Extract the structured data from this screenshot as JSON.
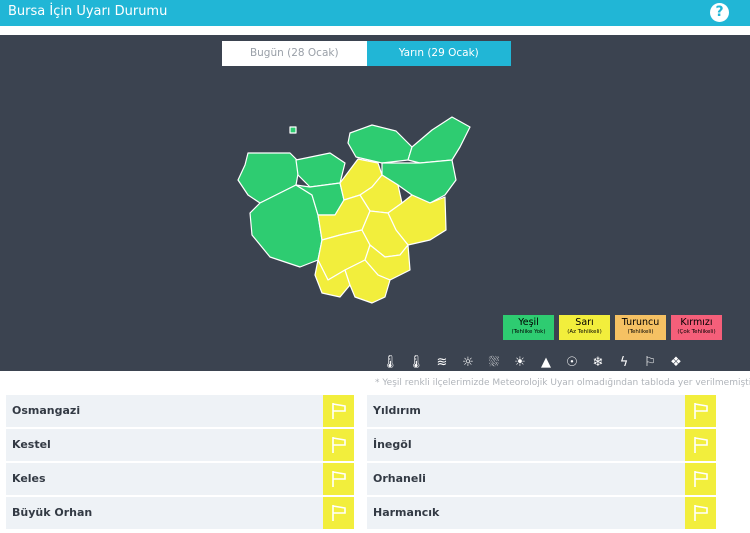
{
  "header": {
    "title": "Bursa İçin Uyarı Durumu",
    "help_icon": "question-icon",
    "help_glyph": "?"
  },
  "tabs": [
    {
      "label": "Bugün (28 Ocak)",
      "active": false
    },
    {
      "label": "Yarın (29 Ocak)",
      "active": true
    }
  ],
  "colors": {
    "green": "#2ecc71",
    "yellow": "#f2ee3c",
    "orange": "#f5c163",
    "red": "#f55f7a",
    "accent": "#21b6d6",
    "panel": "#3b4350"
  },
  "legend": [
    {
      "name": "Yeşil",
      "desc": "(Tehlike Yok)",
      "color": "#2ecc71"
    },
    {
      "name": "Sarı",
      "desc": "(Az Tehlikeli)",
      "color": "#f2ee3c"
    },
    {
      "name": "Turuncu",
      "desc": "(Tehlikeli)",
      "color": "#f5c163"
    },
    {
      "name": "Kırmızı",
      "desc": "(Çok Tehlikeli)",
      "color": "#f55f7a"
    }
  ],
  "hazard_icons": [
    {
      "name": "thermometer-low-icon",
      "glyph": "🌡"
    },
    {
      "name": "thermometer-high-icon",
      "glyph": "🌡"
    },
    {
      "name": "fog-icon",
      "glyph": "≋"
    },
    {
      "name": "dust-icon",
      "glyph": "☼"
    },
    {
      "name": "rain-icon",
      "glyph": "⛆"
    },
    {
      "name": "sun-cloud-icon",
      "glyph": "☀"
    },
    {
      "name": "avalanche-icon",
      "glyph": "▲"
    },
    {
      "name": "hot-icon",
      "glyph": "☉"
    },
    {
      "name": "snow-icon",
      "glyph": "❄"
    },
    {
      "name": "lightning-icon",
      "glyph": "ϟ"
    },
    {
      "name": "wind-icon",
      "glyph": "⚐"
    },
    {
      "name": "hail-icon",
      "glyph": "❖"
    }
  ],
  "footnote": "* Yeşil renkli ilçelerimizde Meteorolojik Uyarı olmadığından tabloda yer verilmemiştir.",
  "districts_left": [
    {
      "name": "Osmangazi",
      "level": "yellow",
      "icon": "wind-icon"
    },
    {
      "name": "Kestel",
      "level": "yellow",
      "icon": "wind-icon"
    },
    {
      "name": "Keles",
      "level": "yellow",
      "icon": "wind-icon"
    },
    {
      "name": "Büyük Orhan",
      "level": "yellow",
      "icon": "wind-icon"
    }
  ],
  "districts_right": [
    {
      "name": "Yıldırım",
      "level": "yellow",
      "icon": "wind-icon"
    },
    {
      "name": "İnegöl",
      "level": "yellow",
      "icon": "wind-icon"
    },
    {
      "name": "Orhaneli",
      "level": "yellow",
      "icon": "wind-icon"
    },
    {
      "name": "Harmancık",
      "level": "yellow",
      "icon": "wind-icon"
    }
  ]
}
